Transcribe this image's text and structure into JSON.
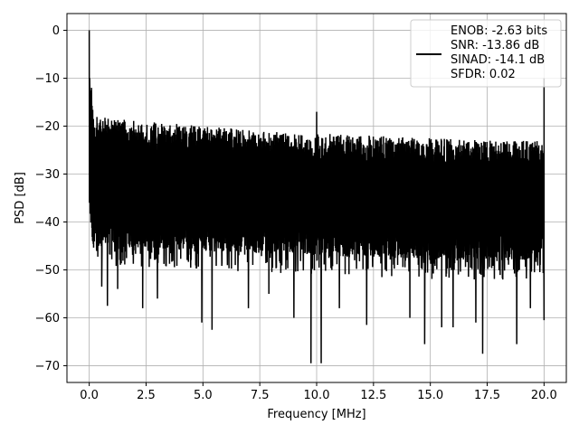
{
  "chart_data": {
    "type": "line",
    "title": "",
    "xlabel": "Frequency [MHz]",
    "ylabel": "PSD [dB]",
    "xlim": [
      -0.98,
      20.98
    ],
    "ylim": [
      -73.5,
      3.5
    ],
    "x_ticks": [
      0.0,
      2.5,
      5.0,
      7.5,
      10.0,
      12.5,
      15.0,
      17.5,
      20.0
    ],
    "x_tick_labels": [
      "0.0",
      "2.5",
      "5.0",
      "7.5",
      "10.0",
      "12.5",
      "15.0",
      "17.5",
      "20.0"
    ],
    "y_ticks": [
      0,
      -10,
      -20,
      -30,
      -40,
      -50,
      -60,
      -70
    ],
    "y_tick_labels": [
      "0",
      "−10",
      "−20",
      "−30",
      "−40",
      "−50",
      "−60",
      "−70"
    ],
    "grid": true,
    "legend_position": "top-right",
    "legend_lines": [
      "ENOB: -2.63 bits",
      "SNR: -13.86 dB",
      "SINAD: -14.1 dB",
      "SFDR: 0.02"
    ],
    "line_color": "#000000",
    "grid_color": "#b0b0b0",
    "series": [
      {
        "x_start": 0.0,
        "x_end": 20.0,
        "peaks": [
          {
            "x": 0.0,
            "y": 0.0
          },
          {
            "x": 0.02,
            "y": -10.0
          },
          {
            "x": 0.05,
            "y": -15.0
          },
          {
            "x": 0.1,
            "y": -12.0
          },
          {
            "x": 10.0,
            "y": -17.0
          },
          {
            "x": 20.0,
            "y": -10.0
          },
          {
            "x": 20.0,
            "y": -60.5
          }
        ],
        "upper_envelope": [
          {
            "x": 0.2,
            "y": -18.0
          },
          {
            "x": 2.5,
            "y": -19.0
          },
          {
            "x": 5.0,
            "y": -20.0
          },
          {
            "x": 7.5,
            "y": -21.0
          },
          {
            "x": 10.0,
            "y": -21.5
          },
          {
            "x": 12.5,
            "y": -22.0
          },
          {
            "x": 15.0,
            "y": -22.5
          },
          {
            "x": 17.5,
            "y": -23.0
          },
          {
            "x": 20.0,
            "y": -23.0
          }
        ],
        "lower_envelope": [
          {
            "x": 0.2,
            "y": -45.0
          },
          {
            "x": 5.0,
            "y": -46.0
          },
          {
            "x": 10.0,
            "y": -47.0
          },
          {
            "x": 15.0,
            "y": -48.0
          },
          {
            "x": 20.0,
            "y": -48.0
          }
        ],
        "deep_nulls": [
          {
            "x": 0.55,
            "y": -53.5
          },
          {
            "x": 0.8,
            "y": -57.5
          },
          {
            "x": 1.25,
            "y": -54.0
          },
          {
            "x": 2.35,
            "y": -58.0
          },
          {
            "x": 3.0,
            "y": -56.0
          },
          {
            "x": 4.95,
            "y": -61.0
          },
          {
            "x": 5.4,
            "y": -62.5
          },
          {
            "x": 7.0,
            "y": -58.0
          },
          {
            "x": 7.9,
            "y": -55.0
          },
          {
            "x": 9.0,
            "y": -60.0
          },
          {
            "x": 9.75,
            "y": -69.5
          },
          {
            "x": 10.2,
            "y": -69.5
          },
          {
            "x": 11.0,
            "y": -58.0
          },
          {
            "x": 12.2,
            "y": -61.5
          },
          {
            "x": 14.1,
            "y": -60.0
          },
          {
            "x": 14.75,
            "y": -65.5
          },
          {
            "x": 15.5,
            "y": -62.0
          },
          {
            "x": 16.0,
            "y": -62.0
          },
          {
            "x": 17.0,
            "y": -61.0
          },
          {
            "x": 17.3,
            "y": -67.5
          },
          {
            "x": 18.8,
            "y": -65.5
          },
          {
            "x": 19.4,
            "y": -58.0
          }
        ]
      }
    ]
  }
}
